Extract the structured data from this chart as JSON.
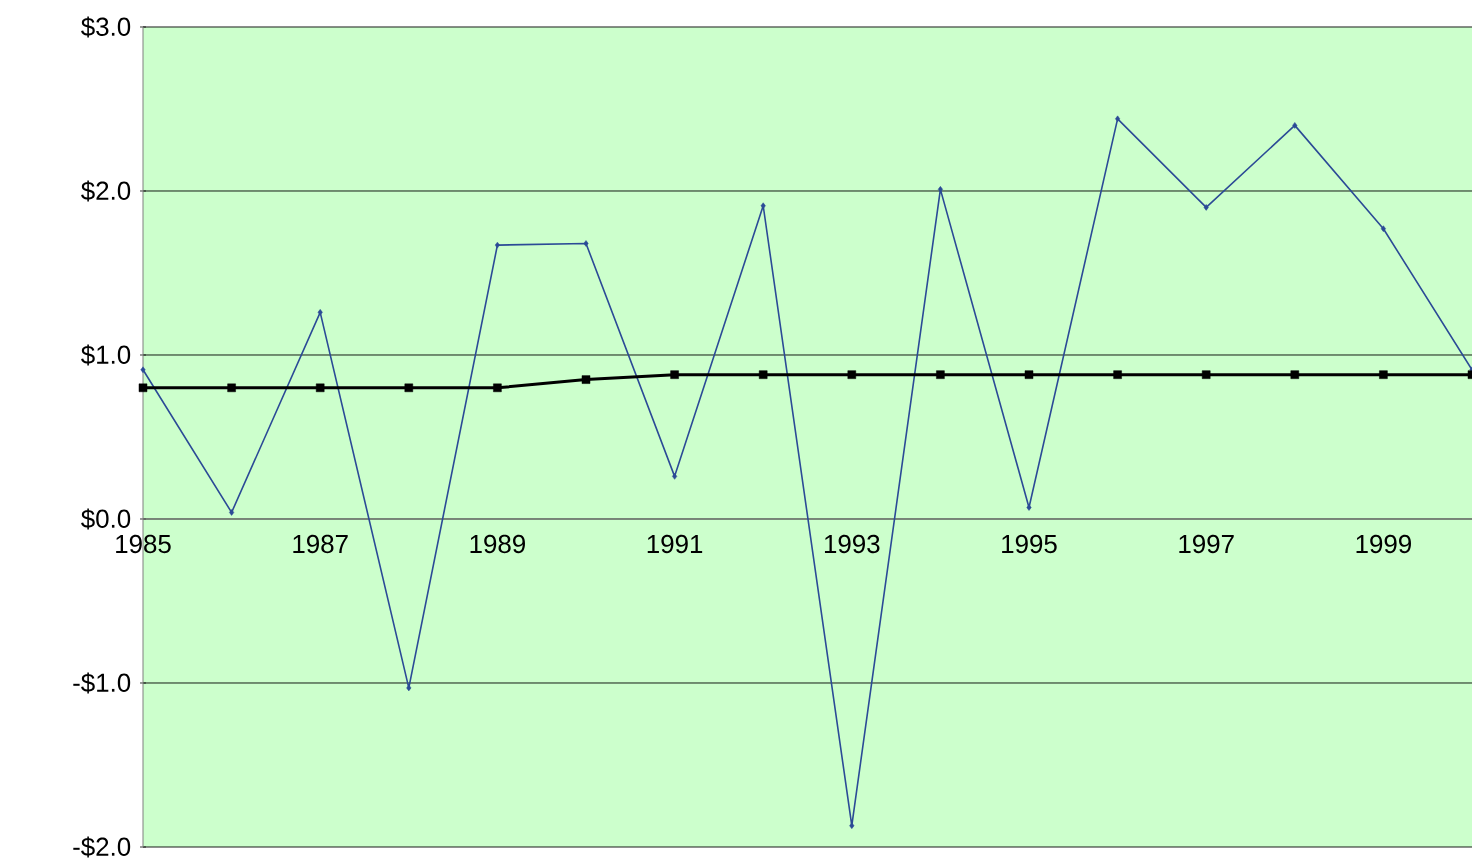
{
  "chart_data": {
    "type": "line",
    "x": [
      1985,
      1986,
      1987,
      1988,
      1989,
      1990,
      1991,
      1992,
      1993,
      1994,
      1995,
      1996,
      1997,
      1998,
      1999,
      2000
    ],
    "series": [
      {
        "color": "#2b4a96",
        "marker": "diamond",
        "values": [
          0.91,
          0.04,
          1.26,
          -1.03,
          1.67,
          1.68,
          0.26,
          1.91,
          -1.87,
          2.01,
          0.07,
          2.44,
          1.9,
          2.4,
          1.77,
          0.91
        ]
      },
      {
        "color": "#000000",
        "marker": "square",
        "values": [
          0.8,
          0.8,
          0.8,
          0.8,
          0.8,
          0.85,
          0.88,
          0.88,
          0.88,
          0.88,
          0.88,
          0.88,
          0.88,
          0.88,
          0.88,
          0.88
        ]
      }
    ],
    "xlim": [
      1985,
      2000
    ],
    "xticks": [
      1985,
      1987,
      1989,
      1991,
      1993,
      1995,
      1997,
      1999
    ],
    "ylim": [
      -2,
      3
    ],
    "yticks": [
      {
        "value": -2,
        "label": "-$2.0"
      },
      {
        "value": -1,
        "label": "-$1.0"
      },
      {
        "value": 0,
        "label": "$0.0"
      },
      {
        "value": 1,
        "label": "$1.0"
      },
      {
        "value": 2,
        "label": "$2.0"
      },
      {
        "value": 3,
        "label": "$3.0"
      }
    ],
    "grid": "y"
  }
}
